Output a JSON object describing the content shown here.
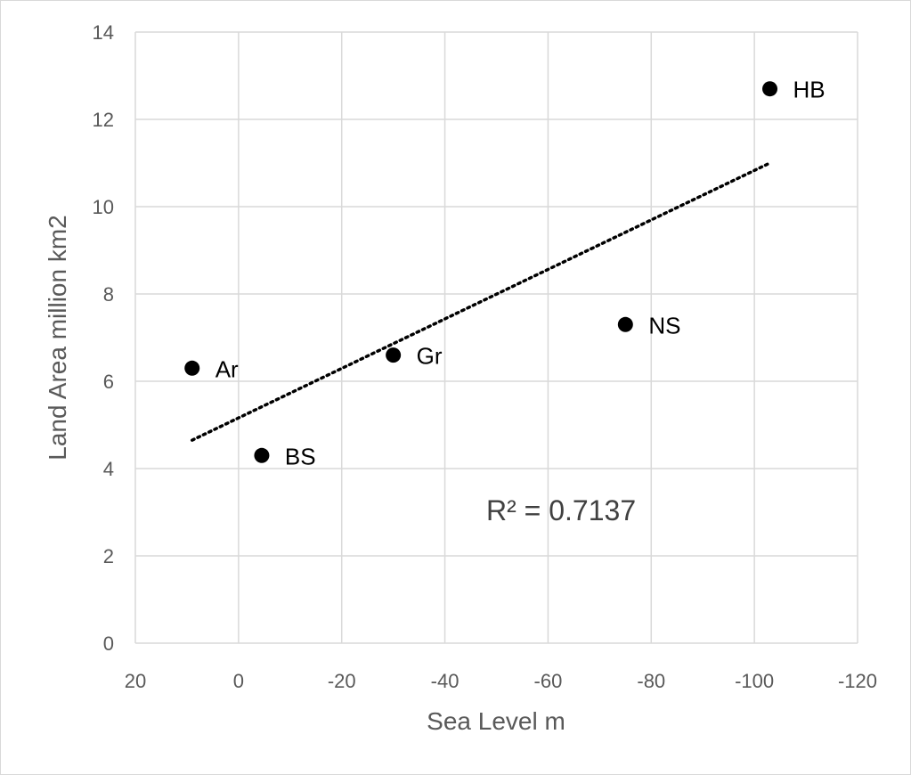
{
  "chart_data": {
    "type": "scatter",
    "title": "",
    "xlabel": "Sea Level m",
    "ylabel": "Land Area million km2",
    "xlim": [
      20,
      -120
    ],
    "ylim": [
      0,
      14
    ],
    "x_reversed": true,
    "x_ticks": [
      20,
      0,
      -20,
      -40,
      -60,
      -80,
      -100,
      -120
    ],
    "x_tick_labels": [
      "20",
      "0",
      "-20",
      "-40",
      "-60",
      "-80",
      "-100",
      "-120"
    ],
    "y_ticks": [
      0,
      2,
      4,
      6,
      8,
      10,
      12,
      14
    ],
    "y_tick_labels": [
      "0",
      "2",
      "4",
      "6",
      "8",
      "10",
      "12",
      "14"
    ],
    "grid": true,
    "legend": "none",
    "marker_color": "#000000",
    "trendline": {
      "type": "linear",
      "style": "dotted",
      "color": "#000000",
      "x": [
        9,
        -103
      ],
      "y": [
        4.65,
        11.0
      ]
    },
    "annotation": "R² = 0.7137",
    "points": [
      {
        "label": "Ar",
        "x": 9,
        "y": 6.3
      },
      {
        "label": "BS",
        "x": -4.5,
        "y": 4.3
      },
      {
        "label": "Gr",
        "x": -30,
        "y": 6.6
      },
      {
        "label": "NS",
        "x": -75,
        "y": 7.3
      },
      {
        "label": "HB",
        "x": -103,
        "y": 12.7
      }
    ]
  }
}
